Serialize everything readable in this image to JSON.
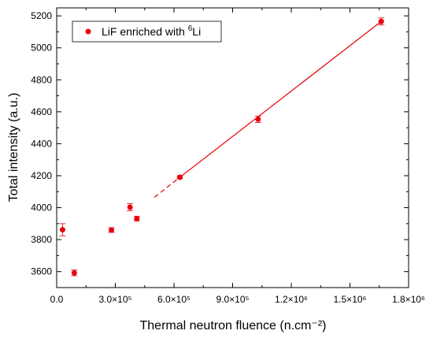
{
  "chart_data": {
    "type": "scatter",
    "xlabel": "Thermal neutron fluence (n.cm⁻²)",
    "ylabel": "Total intensity (a.u.)",
    "xlim": [
      0,
      1800000
    ],
    "ylim": [
      3500,
      5250
    ],
    "x_ticks": [
      {
        "value": 0,
        "label": "0.0"
      },
      {
        "value": 300000,
        "label": "3.0×10⁵"
      },
      {
        "value": 600000,
        "label": "6.0×10⁵"
      },
      {
        "value": 900000,
        "label": "9.0×10⁵"
      },
      {
        "value": 1200000,
        "label": "1.2×10⁶"
      },
      {
        "value": 1500000,
        "label": "1.5×10⁶"
      },
      {
        "value": 1800000,
        "label": "1.8×10⁶"
      }
    ],
    "y_ticks": [
      3600,
      3800,
      4000,
      4200,
      4400,
      4600,
      4800,
      5000,
      5200
    ],
    "series": [
      {
        "name": "LiF enriched with ⁶Li",
        "color": "#e8000b",
        "points": [
          {
            "x": 30000,
            "y": 3862,
            "err": 38
          },
          {
            "x": 90000,
            "y": 3592,
            "err": 18
          },
          {
            "x": 280000,
            "y": 3860,
            "err": 15
          },
          {
            "x": 375000,
            "y": 4003,
            "err": 22
          },
          {
            "x": 410000,
            "y": 3931,
            "err": 15
          },
          {
            "x": 630000,
            "y": 4190,
            "err": 8
          },
          {
            "x": 1030000,
            "y": 4553,
            "err": 20
          },
          {
            "x": 1660000,
            "y": 5165,
            "err": 22
          }
        ]
      }
    ],
    "fit": {
      "color": "#e8000b",
      "solid": {
        "x": [
          630000,
          1660000
        ],
        "y": [
          4190,
          5165
        ]
      },
      "dashed": {
        "x": [
          500000,
          630000
        ],
        "y": [
          4065,
          4190
        ]
      }
    },
    "legend": {
      "position": "top-left",
      "label_main": "LiF enriched with ",
      "label_sup": "6",
      "label_end": "Li"
    },
    "grid": false
  }
}
